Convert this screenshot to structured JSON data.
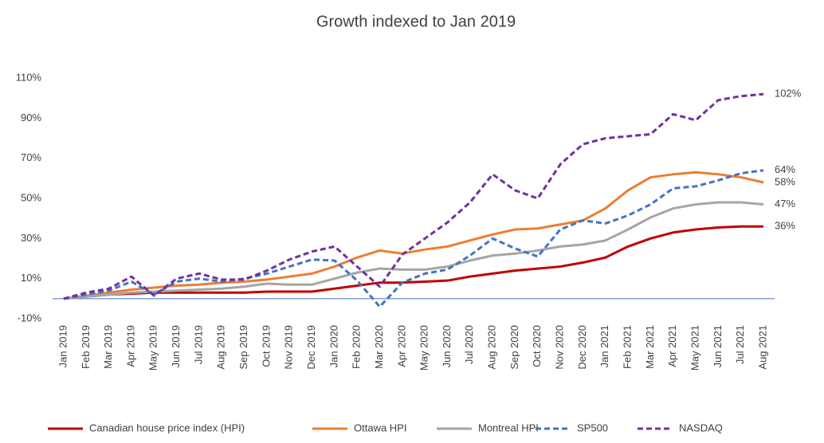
{
  "chart_data": {
    "type": "line",
    "title": "Growth indexed to Jan 2019",
    "categories": [
      "Jan 2019",
      "Feb 2019",
      "Mar 2019",
      "Apr 2019",
      "May 2019",
      "Jun 2019",
      "Jul 2019",
      "Aug 2019",
      "Sep 2019",
      "Oct 2019",
      "Nov 2019",
      "Dec 2019",
      "Jan 2020",
      "Feb 2020",
      "Mar 2020",
      "Apr 2020",
      "May 2020",
      "Jun 2020",
      "Jul 2020",
      "Aug 2020",
      "Sep 2020",
      "Oct 2020",
      "Nov 2020",
      "Dec 2020",
      "Jan 2021",
      "Feb 2021",
      "Mar 2021",
      "Apr 2021",
      "May 2021",
      "Jun 2021",
      "Jul 2021",
      "Aug 2021"
    ],
    "ylim": [
      -10,
      110
    ],
    "yticks": [
      {
        "value": -10,
        "label": "-10%"
      },
      {
        "value": 10,
        "label": "10%"
      },
      {
        "value": 30,
        "label": "30%"
      },
      {
        "value": 50,
        "label": "50%"
      },
      {
        "value": 70,
        "label": "70%"
      },
      {
        "value": 90,
        "label": "90%"
      },
      {
        "value": 110,
        "label": "110%"
      }
    ],
    "grid": false,
    "legend": "bottom",
    "series": [
      {
        "name": "Canadian house price index (HPI)",
        "color": "#c00000",
        "dashed": false,
        "values": [
          0,
          1,
          2,
          2.5,
          3,
          3,
          3,
          3,
          3,
          3.5,
          3.5,
          3.5,
          5,
          6.5,
          8,
          8,
          8.5,
          9,
          11,
          12.5,
          14,
          15,
          16,
          18,
          20.5,
          26,
          30,
          33,
          34.5,
          35.5,
          36,
          36
        ],
        "value_labels": [
          null,
          null,
          null,
          null,
          null,
          null,
          null,
          null,
          null,
          null,
          null,
          null,
          null,
          null,
          null,
          null,
          null,
          null,
          null,
          null,
          null,
          null,
          null,
          null,
          null,
          null,
          null,
          null,
          null,
          null,
          null,
          "36%"
        ]
      },
      {
        "name": "Ottawa HPI",
        "color": "#ed7d31",
        "dashed": false,
        "values": [
          0,
          1.5,
          3,
          4.5,
          5.5,
          6.5,
          7,
          8,
          8.5,
          9.5,
          11,
          12.5,
          16,
          20.5,
          24,
          22.5,
          24.5,
          26,
          29,
          32,
          34.5,
          35,
          37,
          39,
          45,
          54,
          60.5,
          62,
          63,
          62,
          60.5,
          58
        ],
        "value_labels": [
          null,
          null,
          null,
          null,
          null,
          null,
          null,
          null,
          null,
          null,
          null,
          null,
          null,
          null,
          null,
          null,
          null,
          null,
          null,
          null,
          null,
          null,
          null,
          null,
          null,
          null,
          null,
          null,
          null,
          null,
          null,
          "58%"
        ]
      },
      {
        "name": "Montreal HPI",
        "color": "#a5a5a5",
        "dashed": false,
        "values": [
          0,
          1,
          2,
          3,
          3.5,
          4,
          4.5,
          5,
          6,
          7.5,
          7,
          7,
          10,
          13,
          15,
          14.5,
          14.5,
          16,
          19,
          21.5,
          22.5,
          24,
          26,
          27,
          29,
          34.5,
          40.5,
          45,
          47,
          48,
          48,
          47
        ],
        "value_labels": [
          null,
          null,
          null,
          null,
          null,
          null,
          null,
          null,
          null,
          null,
          null,
          null,
          null,
          null,
          null,
          null,
          null,
          null,
          null,
          null,
          null,
          null,
          null,
          null,
          null,
          null,
          null,
          null,
          null,
          null,
          null,
          "47%"
        ]
      },
      {
        "name": "SP500",
        "color": "#4472c4",
        "dashed": true,
        "values": [
          0,
          2,
          4,
          8.5,
          2,
          8.5,
          10,
          8.5,
          10,
          12.5,
          16,
          19.5,
          19,
          9,
          -4,
          8,
          12.5,
          14.5,
          21.5,
          30,
          25,
          21,
          34.5,
          39,
          37.5,
          41.5,
          47,
          55,
          56,
          59,
          62.5,
          64
        ],
        "value_labels": [
          null,
          null,
          null,
          null,
          null,
          null,
          null,
          null,
          null,
          null,
          null,
          null,
          null,
          null,
          null,
          null,
          null,
          null,
          null,
          null,
          null,
          null,
          null,
          null,
          null,
          null,
          null,
          null,
          null,
          null,
          null,
          "64%"
        ]
      },
      {
        "name": "NASDAQ",
        "color": "#7030a0",
        "dashed": true,
        "values": [
          0,
          3,
          5,
          11,
          1.5,
          10,
          12.5,
          9.5,
          9.5,
          14,
          19.5,
          23.5,
          26,
          16,
          6,
          22,
          30,
          38,
          48,
          62,
          54,
          50,
          67,
          77,
          80,
          81,
          82,
          92,
          89,
          99,
          101,
          102
        ],
        "value_labels": [
          null,
          null,
          null,
          null,
          null,
          null,
          null,
          null,
          null,
          null,
          null,
          null,
          null,
          null,
          null,
          null,
          null,
          null,
          null,
          null,
          null,
          null,
          null,
          null,
          null,
          null,
          null,
          null,
          null,
          null,
          null,
          "102%"
        ]
      }
    ]
  }
}
